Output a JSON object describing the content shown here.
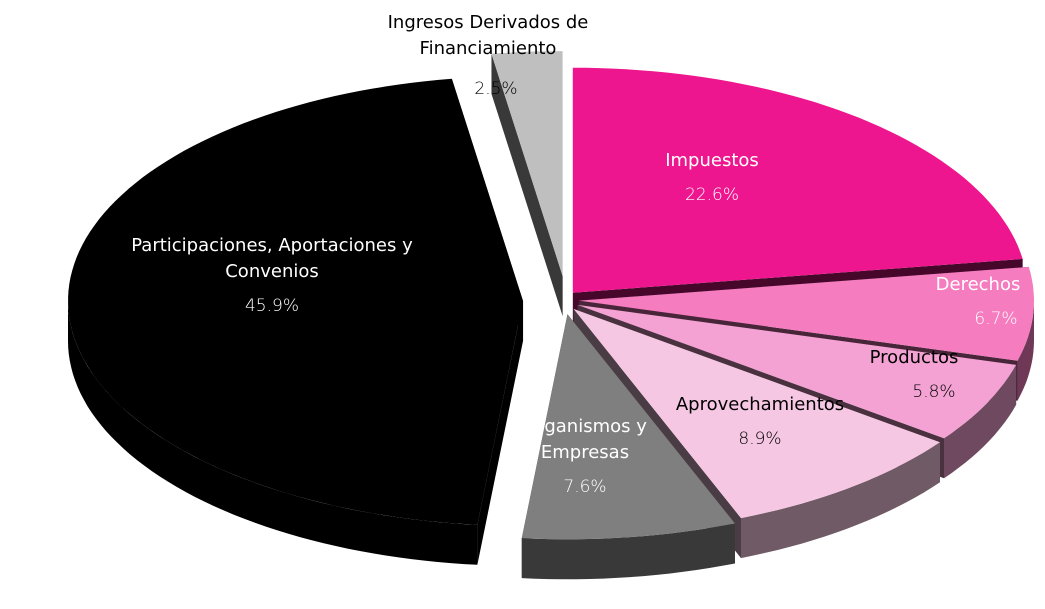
{
  "chart_data": {
    "type": "pie",
    "categories": [
      "Impuestos",
      "Derechos",
      "Productos",
      "Aprovechamientos",
      "Organismos y Empresas",
      "Participaciones, Aportaciones y Convenios",
      "Ingresos Derivados de Financiamiento"
    ],
    "values": [
      22.6,
      6.7,
      5.8,
      8.9,
      7.6,
      45.9,
      2.5
    ],
    "value_labels": [
      "22.6%",
      "6.7%",
      "5.8%",
      "8.9%",
      "7.6%",
      "45.9%",
      "2.5%"
    ],
    "colors": [
      "#ee168e",
      "#f47cbf",
      "#f4a2d3",
      "#f6c7e3",
      "#7f7f7f",
      "#000000",
      "#bfbfbf"
    ]
  }
}
